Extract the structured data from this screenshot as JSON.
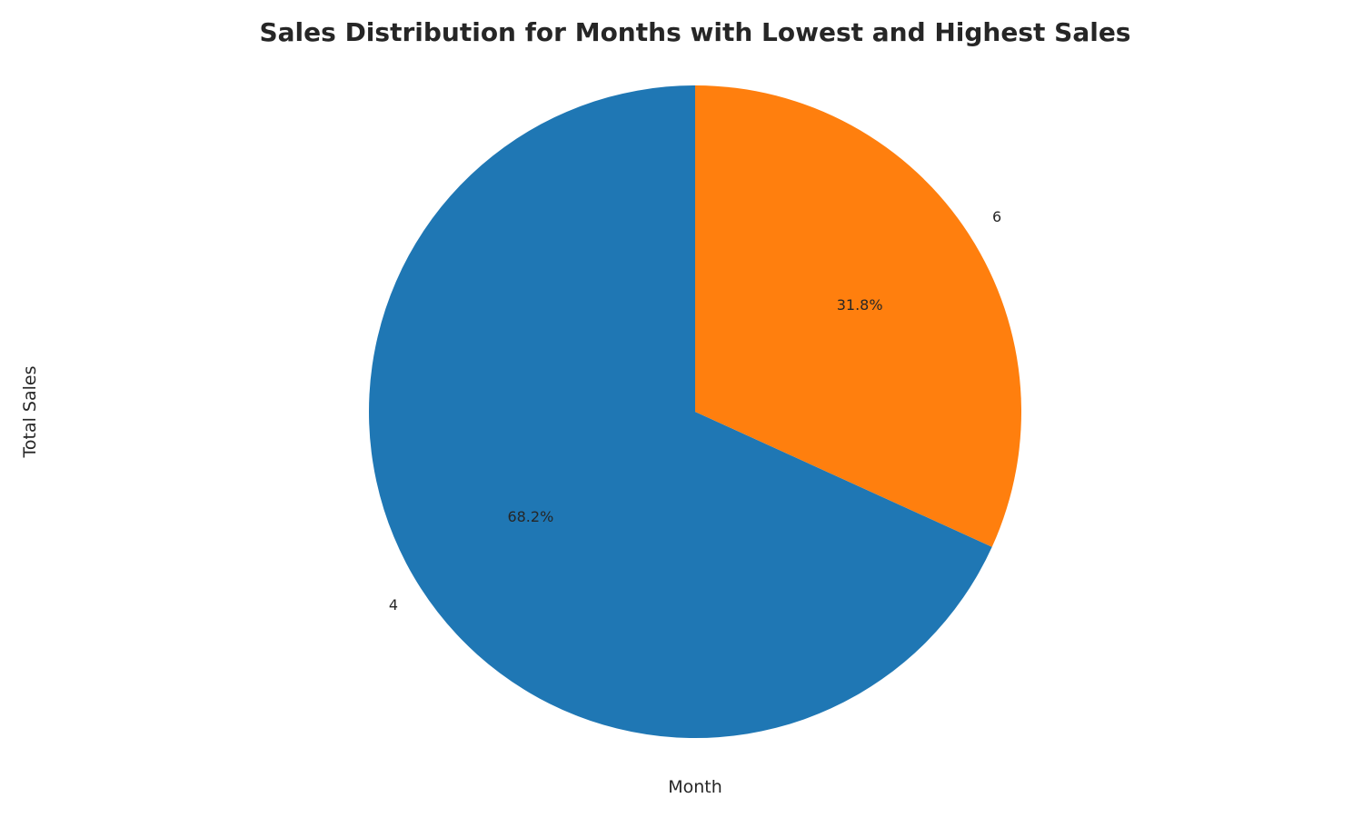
{
  "chart_data": {
    "type": "pie",
    "title": "Sales Distribution for Months with Lowest and Highest Sales",
    "xlabel": "Month",
    "ylabel": "Total Sales",
    "categories": [
      "4",
      "6"
    ],
    "values": [
      68.2,
      31.8
    ],
    "percent_labels": [
      "68.2%",
      "31.8%"
    ],
    "colors": [
      "#1f77b4",
      "#ff7f0e"
    ],
    "start_angle_deg": 90,
    "direction": "counterclockwise",
    "legend": "none",
    "grid": false
  }
}
